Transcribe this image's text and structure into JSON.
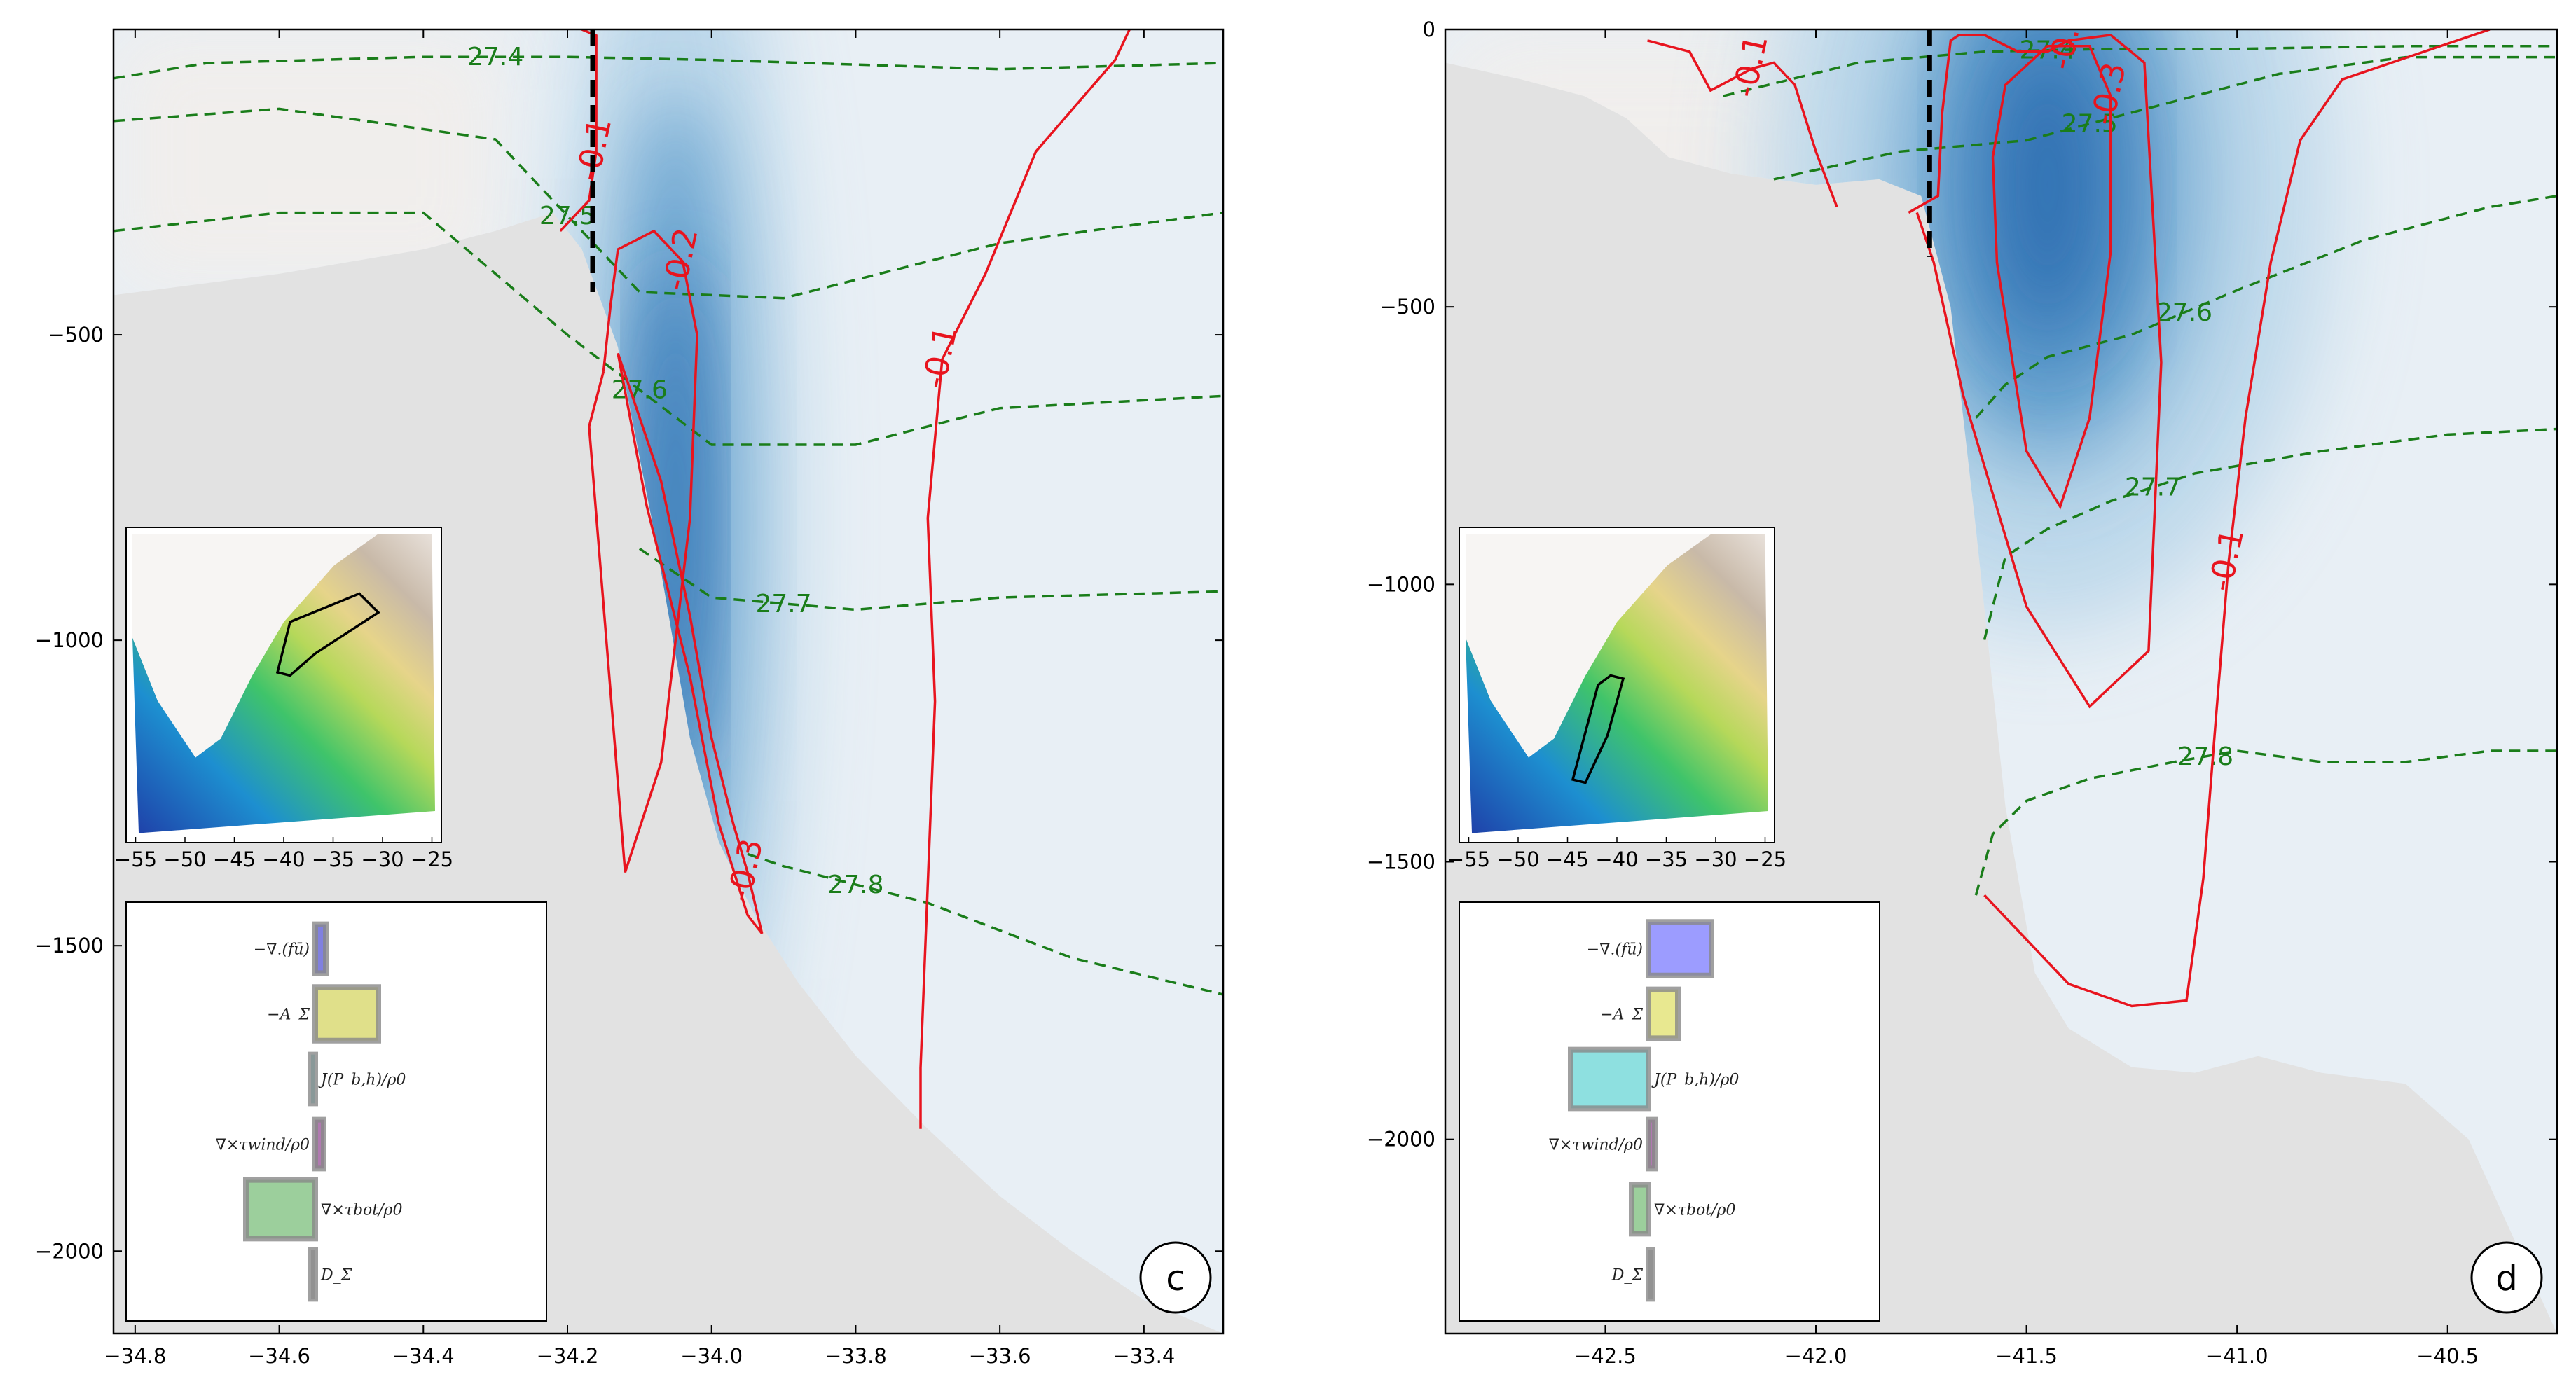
{
  "chart_data": [
    {
      "type": "section",
      "panel_label": "c",
      "xlim": [
        -34.83,
        -33.29
      ],
      "ylim": [
        -2135,
        0
      ],
      "x_ticks": [
        -34.8,
        -34.6,
        -34.4,
        -34.2,
        -34.0,
        -33.8,
        -33.6,
        -33.4
      ],
      "y_ticks": [
        -500,
        -1000,
        -1500,
        -2000
      ],
      "section_x": -34.165,
      "section_bottom": -430,
      "background_color": "#e2e2e2",
      "bathymetry": {
        "x": [
          -34.83,
          -34.6,
          -34.4,
          -34.3,
          -34.22,
          -34.18,
          -34.13,
          -34.08,
          -34.03,
          -33.99,
          -33.94,
          -33.88,
          -33.8,
          -33.7,
          -33.6,
          -33.5,
          -33.4,
          -33.29
        ],
        "depth": [
          -435,
          -400,
          -360,
          -330,
          -300,
          -360,
          -520,
          -820,
          -1160,
          -1330,
          -1450,
          -1560,
          -1680,
          -1800,
          -1910,
          -2000,
          -2080,
          -2135
        ]
      },
      "velocity_core": {
        "x": -34.05,
        "depth": -800,
        "rx": 0.07,
        "ry": 700,
        "peak": -0.38
      },
      "red_contours": [
        {
          "label": "-0.1",
          "x": [
            -34.21,
            -34.17,
            -34.16,
            -34.16,
            -34.16,
            -34.18
          ],
          "y": [
            -330,
            -280,
            -200,
            -100,
            -10,
            0
          ]
        },
        {
          "label": "-0.2",
          "x": [
            -34.15,
            -34.14,
            -34.13,
            -34.08,
            -34.04,
            -34.02,
            -34.03,
            -34.07,
            -34.12,
            -34.17,
            -34.15
          ],
          "y": [
            -560,
            -450,
            -360,
            -330,
            -380,
            -500,
            -800,
            -1200,
            -1380,
            -650,
            -560
          ]
        },
        {
          "label": "-0.3",
          "x": [
            -34.13,
            -34.07,
            -34.03,
            -34.0,
            -33.97,
            -33.95,
            -33.93,
            -33.95,
            -33.99,
            -34.03,
            -34.09,
            -34.13
          ],
          "y": [
            -530,
            -740,
            -960,
            -1160,
            -1300,
            -1380,
            -1480,
            -1450,
            -1300,
            -1060,
            -780,
            -530
          ]
        },
        {
          "label": "-0.1",
          "x": [
            -33.42,
            -33.44,
            -33.55,
            -33.62,
            -33.68,
            -33.7,
            -33.69,
            -33.7,
            -33.71,
            -33.71
          ],
          "y": [
            0,
            -50,
            -200,
            -400,
            -540,
            -800,
            -1100,
            -1400,
            -1700,
            -1800
          ]
        }
      ],
      "green_contours": [
        {
          "label": "27.4",
          "x": [
            -34.83,
            -34.7,
            -34.4,
            -34.2,
            -34.0,
            -33.6,
            -33.29
          ],
          "y": [
            -80,
            -55,
            -45,
            -45,
            -50,
            -65,
            -55
          ]
        },
        {
          "label": "27.5",
          "x": [
            -34.83,
            -34.6,
            -34.3,
            -34.1,
            -33.9,
            -33.6,
            -33.29
          ],
          "y": [
            -150,
            -130,
            -180,
            -430,
            -440,
            -350,
            -300
          ]
        },
        {
          "label": "27.6",
          "x": [
            -34.83,
            -34.6,
            -34.4,
            -34.2,
            -34.0,
            -33.8,
            -33.6,
            -33.29
          ],
          "y": [
            -330,
            -300,
            -300,
            -500,
            -680,
            -680,
            -620,
            -600
          ]
        },
        {
          "label": "27.7",
          "x": [
            -34.1,
            -34.0,
            -33.8,
            -33.6,
            -33.29
          ],
          "y": [
            -850,
            -930,
            -950,
            -930,
            -920
          ]
        },
        {
          "label": "27.8",
          "x": [
            -33.95,
            -33.9,
            -33.7,
            -33.5,
            -33.29
          ],
          "y": [
            -1350,
            -1370,
            -1430,
            -1520,
            -1580
          ]
        }
      ],
      "inset_map": {
        "x_ticks": [
          "-55",
          "-50",
          "-45",
          "-40",
          "-35",
          "-30",
          "-25"
        ]
      },
      "term_bars": {
        "xlim": [
          -1.0,
          1.0
        ],
        "terms": [
          {
            "label": "−∇.(fū)",
            "value": 0.05,
            "color": "#8080e0"
          },
          {
            "label": "−A_Σ",
            "value": 0.3,
            "color": "#e0e08a"
          },
          {
            "label": "J(P_b,h)/ρ0",
            "value": -0.02,
            "color": "#8ad8d8"
          },
          {
            "label": "∇×τwind/ρ0",
            "value": 0.04,
            "color": "#b07ab0"
          },
          {
            "label": "∇×τbot/ρ0",
            "value": -0.33,
            "color": "#9ccf9c"
          },
          {
            "label": "D_Σ",
            "value": -0.01,
            "color": "#bbbbbb"
          }
        ]
      }
    },
    {
      "type": "section",
      "panel_label": "d",
      "xlim": [
        -42.88,
        -40.24
      ],
      "ylim": [
        -2350,
        0
      ],
      "x_ticks": [
        -42.5,
        -42.0,
        -41.5,
        -41.0,
        -40.5
      ],
      "y_ticks": [
        0,
        -500,
        -1000,
        -1500,
        -2000
      ],
      "section_x": -41.73,
      "section_bottom": -410,
      "background_color": "#e2e2e2",
      "bathymetry": {
        "x": [
          -42.88,
          -42.7,
          -42.55,
          -42.45,
          -42.35,
          -42.2,
          -42.0,
          -41.85,
          -41.75,
          -41.68,
          -41.62,
          -41.55,
          -41.48,
          -41.4,
          -41.25,
          -41.1,
          -40.95,
          -40.8,
          -40.6,
          -40.45,
          -40.24
        ],
        "depth": [
          -60,
          -90,
          -120,
          -160,
          -230,
          -260,
          -280,
          -270,
          -300,
          -500,
          -900,
          -1400,
          -1700,
          -1800,
          -1870,
          -1880,
          -1850,
          -1880,
          -1900,
          -2000,
          -2350
        ]
      },
      "velocity_core": {
        "x": -41.45,
        "depth": -280,
        "rx": 0.28,
        "ry": 500,
        "peak": -0.42
      },
      "red_contours": [
        {
          "label": "-0.1",
          "x": [
            -42.4,
            -42.3,
            -42.25,
            -42.15,
            -42.1,
            -42.05,
            -42.0,
            -41.95
          ],
          "y": [
            -20,
            -40,
            -110,
            -70,
            -60,
            -100,
            -220,
            -320
          ]
        },
        {
          "label": "-0.2",
          "x": [
            -41.78,
            -41.71,
            -41.7,
            -41.68,
            -41.66,
            -41.6,
            -41.52,
            -41.45,
            -41.4,
            -41.3,
            -41.22,
            -41.18,
            -41.21,
            -41.35,
            -41.5,
            -41.65,
            -41.72,
            -41.76
          ],
          "y": [
            -330,
            -300,
            -150,
            -20,
            -10,
            -10,
            -40,
            -40,
            -20,
            -10,
            -60,
            -600,
            -1120,
            -1220,
            -1040,
            -660,
            -420,
            -330
          ]
        },
        {
          "label": "-0.3",
          "x": [
            -41.58,
            -41.55,
            -41.45,
            -41.35,
            -41.3,
            -41.3,
            -41.35,
            -41.42,
            -41.5,
            -41.57,
            -41.58
          ],
          "y": [
            -230,
            -100,
            -30,
            -30,
            -120,
            -400,
            -700,
            -860,
            -760,
            -420,
            -230
          ]
        },
        {
          "label": "-0.1",
          "x": [
            -40.4,
            -40.75,
            -40.85,
            -40.92,
            -40.98,
            -41.02,
            -41.05,
            -41.08,
            -41.12,
            -41.25,
            -41.4,
            -41.6
          ],
          "y": [
            0,
            -90,
            -200,
            -420,
            -700,
            -960,
            -1240,
            -1530,
            -1750,
            -1760,
            -1720,
            -1560
          ]
        }
      ],
      "green_contours": [
        {
          "label": "27.4",
          "x": [
            -42.22,
            -41.9,
            -41.6,
            -41.3,
            -41.0,
            -40.6,
            -40.24
          ],
          "y": [
            -120,
            -60,
            -40,
            -35,
            -35,
            -30,
            -30
          ]
        },
        {
          "label": "27.5",
          "x": [
            -42.1,
            -41.8,
            -41.5,
            -41.2,
            -40.9,
            -40.6,
            -40.24
          ],
          "y": [
            -270,
            -220,
            -200,
            -140,
            -80,
            -50,
            -50
          ]
        },
        {
          "label": "27.6",
          "x": [
            -41.62,
            -41.55,
            -41.45,
            -41.25,
            -41.0,
            -40.7,
            -40.4,
            -40.24
          ],
          "y": [
            -700,
            -640,
            -590,
            -550,
            -470,
            -380,
            -320,
            -300
          ]
        },
        {
          "label": "27.7",
          "x": [
            -41.6,
            -41.55,
            -41.45,
            -41.3,
            -41.1,
            -40.8,
            -40.5,
            -40.24
          ],
          "y": [
            -1100,
            -950,
            -900,
            -850,
            -800,
            -760,
            -730,
            -720
          ]
        },
        {
          "label": "27.8",
          "x": [
            -41.62,
            -41.58,
            -41.5,
            -41.35,
            -41.15,
            -41.0,
            -40.8,
            -40.6,
            -40.4,
            -40.24
          ],
          "y": [
            -1560,
            -1450,
            -1390,
            -1350,
            -1320,
            -1300,
            -1320,
            -1320,
            -1300,
            -1300
          ]
        }
      ],
      "inset_map": {
        "x_ticks": [
          "-55",
          "-50",
          "-45",
          "-40",
          "-35",
          "-30",
          "-25"
        ]
      },
      "term_bars": {
        "xlim": [
          -1.0,
          1.0
        ],
        "terms": [
          {
            "label": "−∇.(fū)",
            "value": 0.3,
            "color": "#9c9cff"
          },
          {
            "label": "−A_Σ",
            "value": 0.14,
            "color": "#e8e890"
          },
          {
            "label": "J(P_b,h)/ρ0",
            "value": -0.37,
            "color": "#8ee0e0"
          },
          {
            "label": "∇×τwind/ρ0",
            "value": 0.03,
            "color": "#b07ab0"
          },
          {
            "label": "∇×τbot/ρ0",
            "value": -0.08,
            "color": "#9ccf9c"
          },
          {
            "label": "D_Σ",
            "value": 0.02,
            "color": "#bbbbbb"
          }
        ]
      }
    }
  ]
}
